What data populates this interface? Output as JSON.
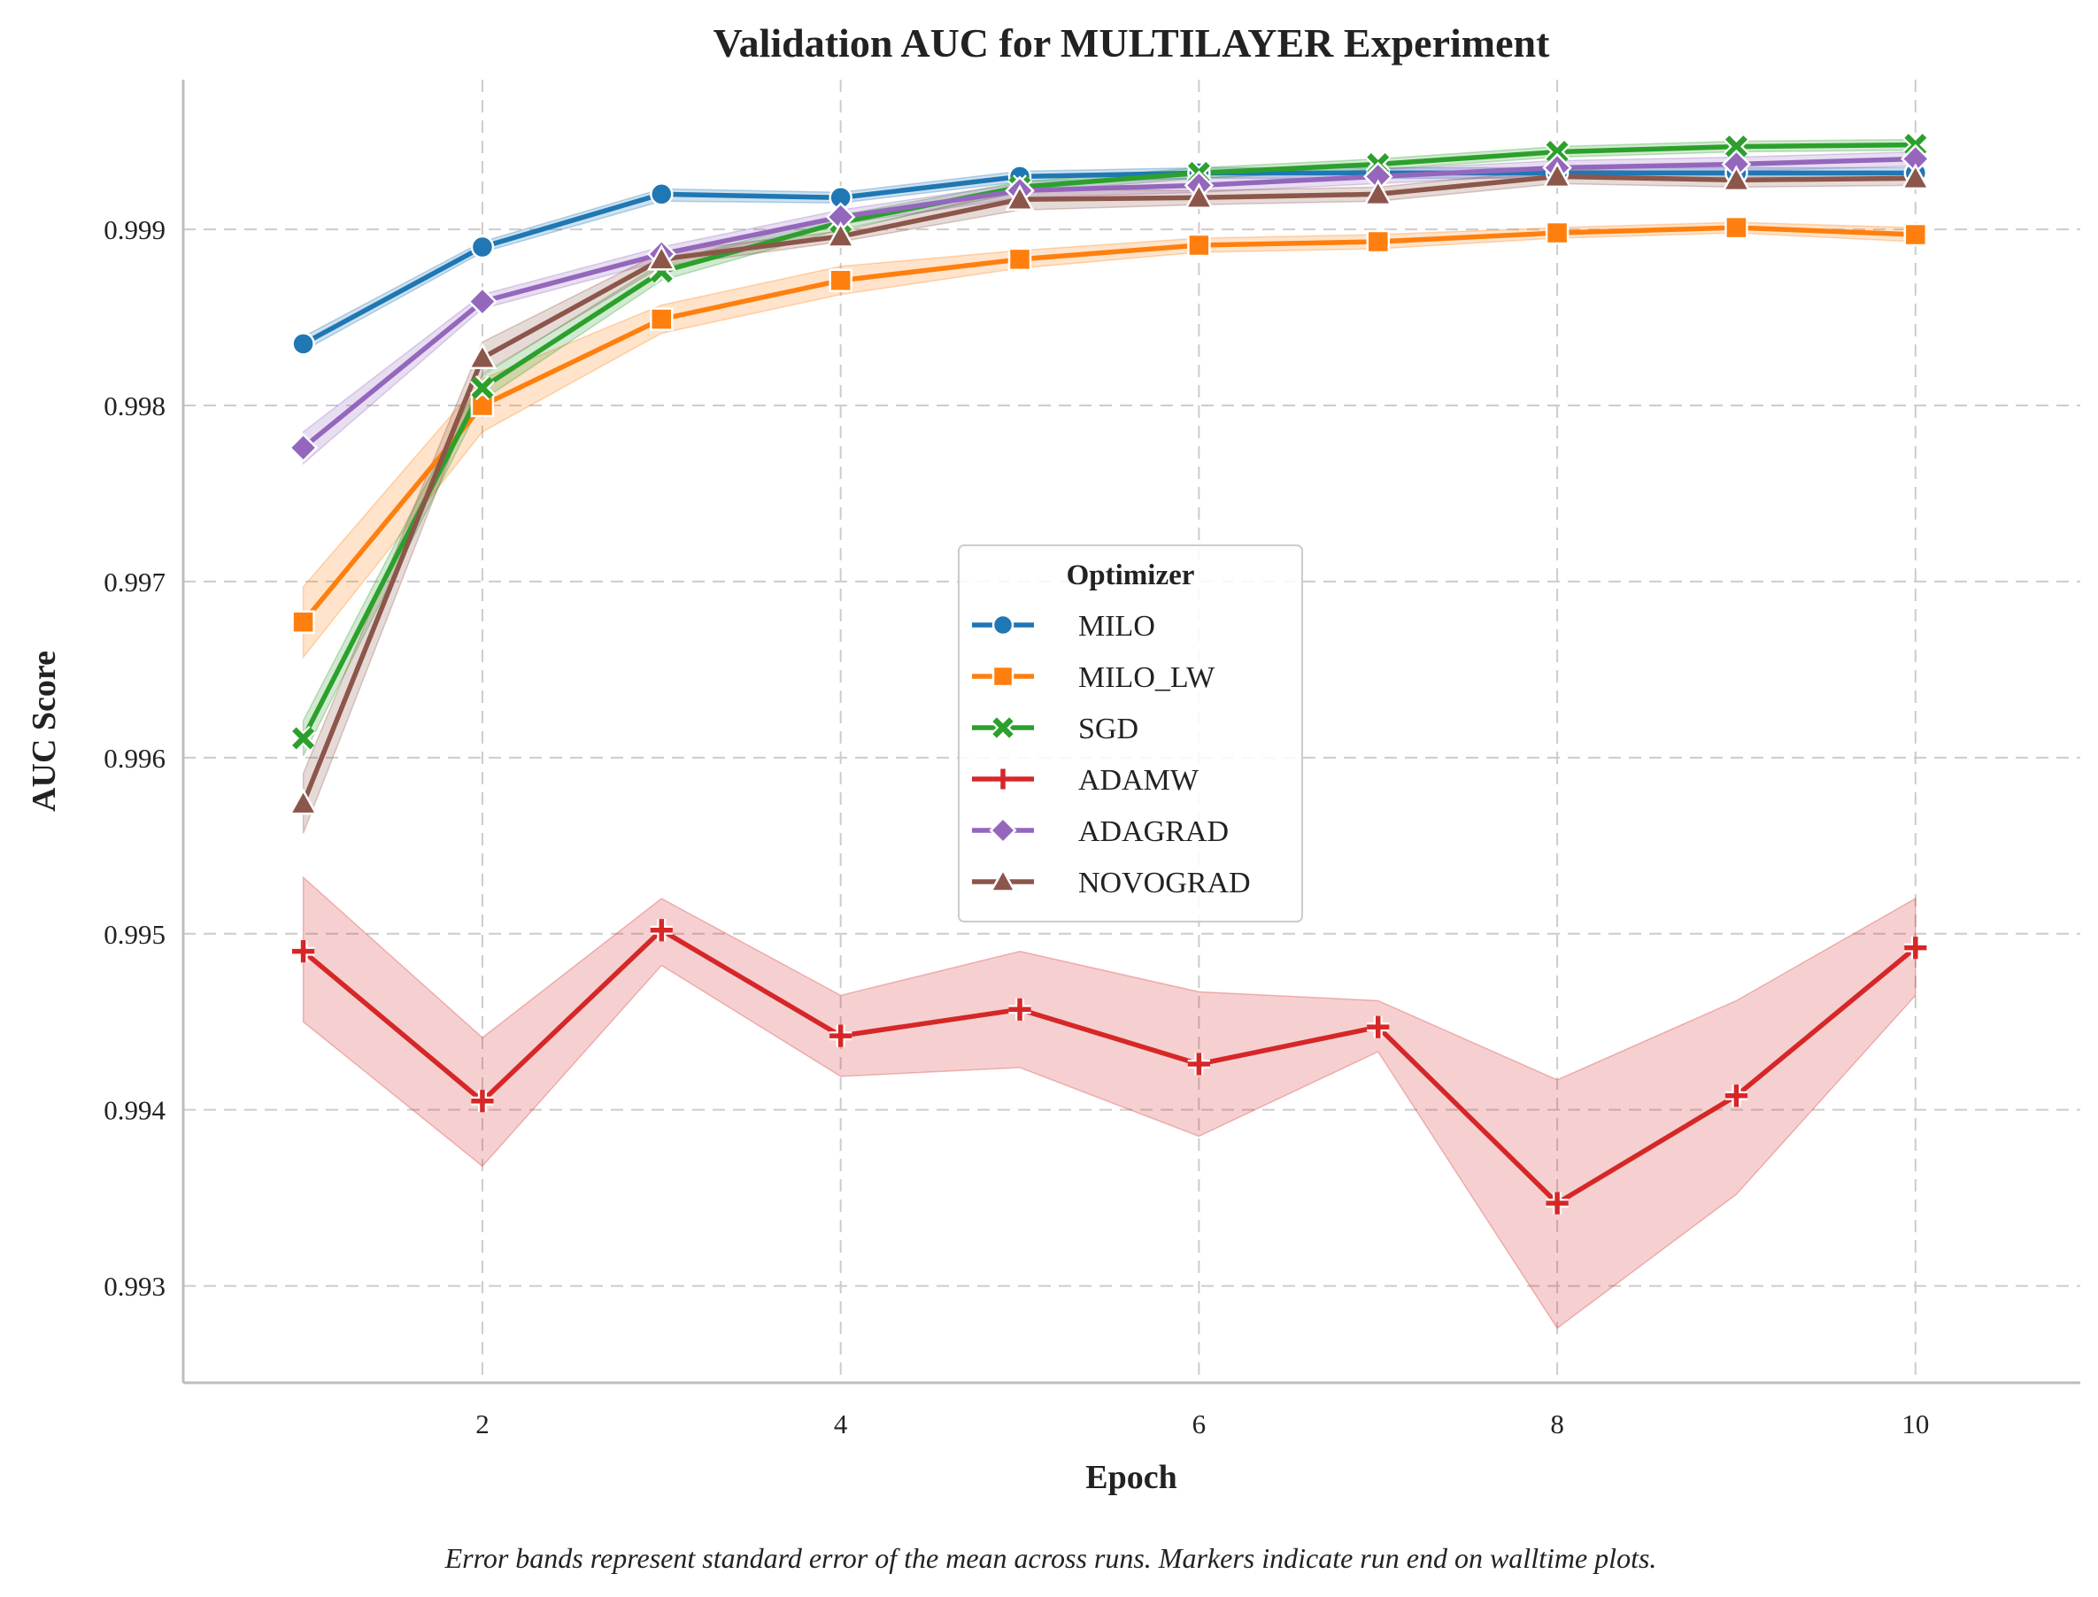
{
  "chart_data": {
    "type": "line",
    "title": "Validation AUC for MULTILAYER Experiment",
    "xlabel": "Epoch",
    "ylabel": "AUC Score",
    "xlim": [
      0.33,
      10.92
    ],
    "ylim": [
      0.99245,
      0.99985
    ],
    "xticks": [
      2,
      4,
      6,
      8,
      10
    ],
    "xtick_labels": [
      "2",
      "4",
      "6",
      "8",
      "10"
    ],
    "yticks": [
      0.993,
      0.994,
      0.995,
      0.996,
      0.997,
      0.998,
      0.999
    ],
    "ytick_labels": [
      "0.993",
      "0.994",
      "0.995",
      "0.996",
      "0.997",
      "0.998",
      "0.999"
    ],
    "grid": true,
    "legend": {
      "title": "Optimizer",
      "position": "center"
    },
    "x": [
      1,
      2,
      3,
      4,
      5,
      6,
      7,
      8,
      9,
      10
    ],
    "series": [
      {
        "name": "MILO",
        "color": "#1f77b4",
        "marker": "circle",
        "values": [
          0.99835,
          0.9989,
          0.9992,
          0.99918,
          0.9993,
          0.99932,
          0.99932,
          0.99932,
          0.99932,
          0.99932
        ],
        "lower": [
          0.99831,
          0.99887,
          0.99916,
          0.99915,
          0.99927,
          0.99929,
          0.99929,
          0.99929,
          0.99929,
          0.99929
        ],
        "upper": [
          0.99839,
          0.99893,
          0.99923,
          0.99921,
          0.99933,
          0.99935,
          0.99935,
          0.99935,
          0.99935,
          0.99935
        ]
      },
      {
        "name": "MILO_LW",
        "color": "#ff7f0e",
        "marker": "square",
        "values": [
          0.99677,
          0.998,
          0.99849,
          0.99871,
          0.99883,
          0.99891,
          0.99893,
          0.99898,
          0.99901,
          0.99897
        ],
        "lower": [
          0.99657,
          0.99785,
          0.99841,
          0.99863,
          0.99878,
          0.99887,
          0.99889,
          0.99895,
          0.99898,
          0.99893
        ],
        "upper": [
          0.99697,
          0.99815,
          0.99857,
          0.99879,
          0.99888,
          0.99895,
          0.99897,
          0.99901,
          0.99904,
          0.99901
        ]
      },
      {
        "name": "SGD",
        "color": "#2ca02c",
        "marker": "x",
        "values": [
          0.99611,
          0.9981,
          0.99876,
          0.99904,
          0.99924,
          0.99932,
          0.99937,
          0.99944,
          0.99947,
          0.99948
        ],
        "lower": [
          0.99601,
          0.99803,
          0.99871,
          0.999,
          0.99921,
          0.99929,
          0.99934,
          0.99941,
          0.99944,
          0.99945
        ],
        "upper": [
          0.99621,
          0.99817,
          0.99881,
          0.99908,
          0.99927,
          0.99935,
          0.9994,
          0.99947,
          0.9995,
          0.99951
        ]
      },
      {
        "name": "ADAMW",
        "color": "#d62728",
        "marker": "plus",
        "values": [
          0.9949,
          0.99405,
          0.99502,
          0.99442,
          0.99457,
          0.99426,
          0.99447,
          0.99347,
          0.99408,
          0.99492
        ],
        "lower": [
          0.9945,
          0.99368,
          0.99482,
          0.99419,
          0.99424,
          0.99385,
          0.99433,
          0.99276,
          0.99352,
          0.99465
        ],
        "upper": [
          0.99532,
          0.99441,
          0.9952,
          0.99465,
          0.9949,
          0.99467,
          0.99462,
          0.99417,
          0.99462,
          0.9952
        ]
      },
      {
        "name": "ADAGRAD",
        "color": "#9467bd",
        "marker": "diamond",
        "values": [
          0.99776,
          0.99859,
          0.99886,
          0.99907,
          0.99922,
          0.99925,
          0.9993,
          0.99935,
          0.99937,
          0.9994
        ],
        "lower": [
          0.99767,
          0.99855,
          0.99882,
          0.99903,
          0.99918,
          0.99921,
          0.99926,
          0.99931,
          0.99933,
          0.99936
        ],
        "upper": [
          0.99785,
          0.99863,
          0.9989,
          0.99911,
          0.99926,
          0.99929,
          0.99934,
          0.99939,
          0.99941,
          0.99944
        ]
      },
      {
        "name": "NOVOGRAD",
        "color": "#8c564b",
        "marker": "triangle",
        "values": [
          0.99574,
          0.99827,
          0.99883,
          0.99896,
          0.99917,
          0.99918,
          0.9992,
          0.9993,
          0.99928,
          0.99929
        ],
        "lower": [
          0.99557,
          0.99818,
          0.99879,
          0.99893,
          0.99911,
          0.99914,
          0.99916,
          0.99926,
          0.99924,
          0.99925
        ],
        "upper": [
          0.99591,
          0.99836,
          0.99887,
          0.99899,
          0.99923,
          0.99922,
          0.99924,
          0.99934,
          0.99932,
          0.99933
        ]
      }
    ]
  },
  "caption": "Error bands represent standard error of the mean across runs. Markers indicate run end on walltime plots."
}
